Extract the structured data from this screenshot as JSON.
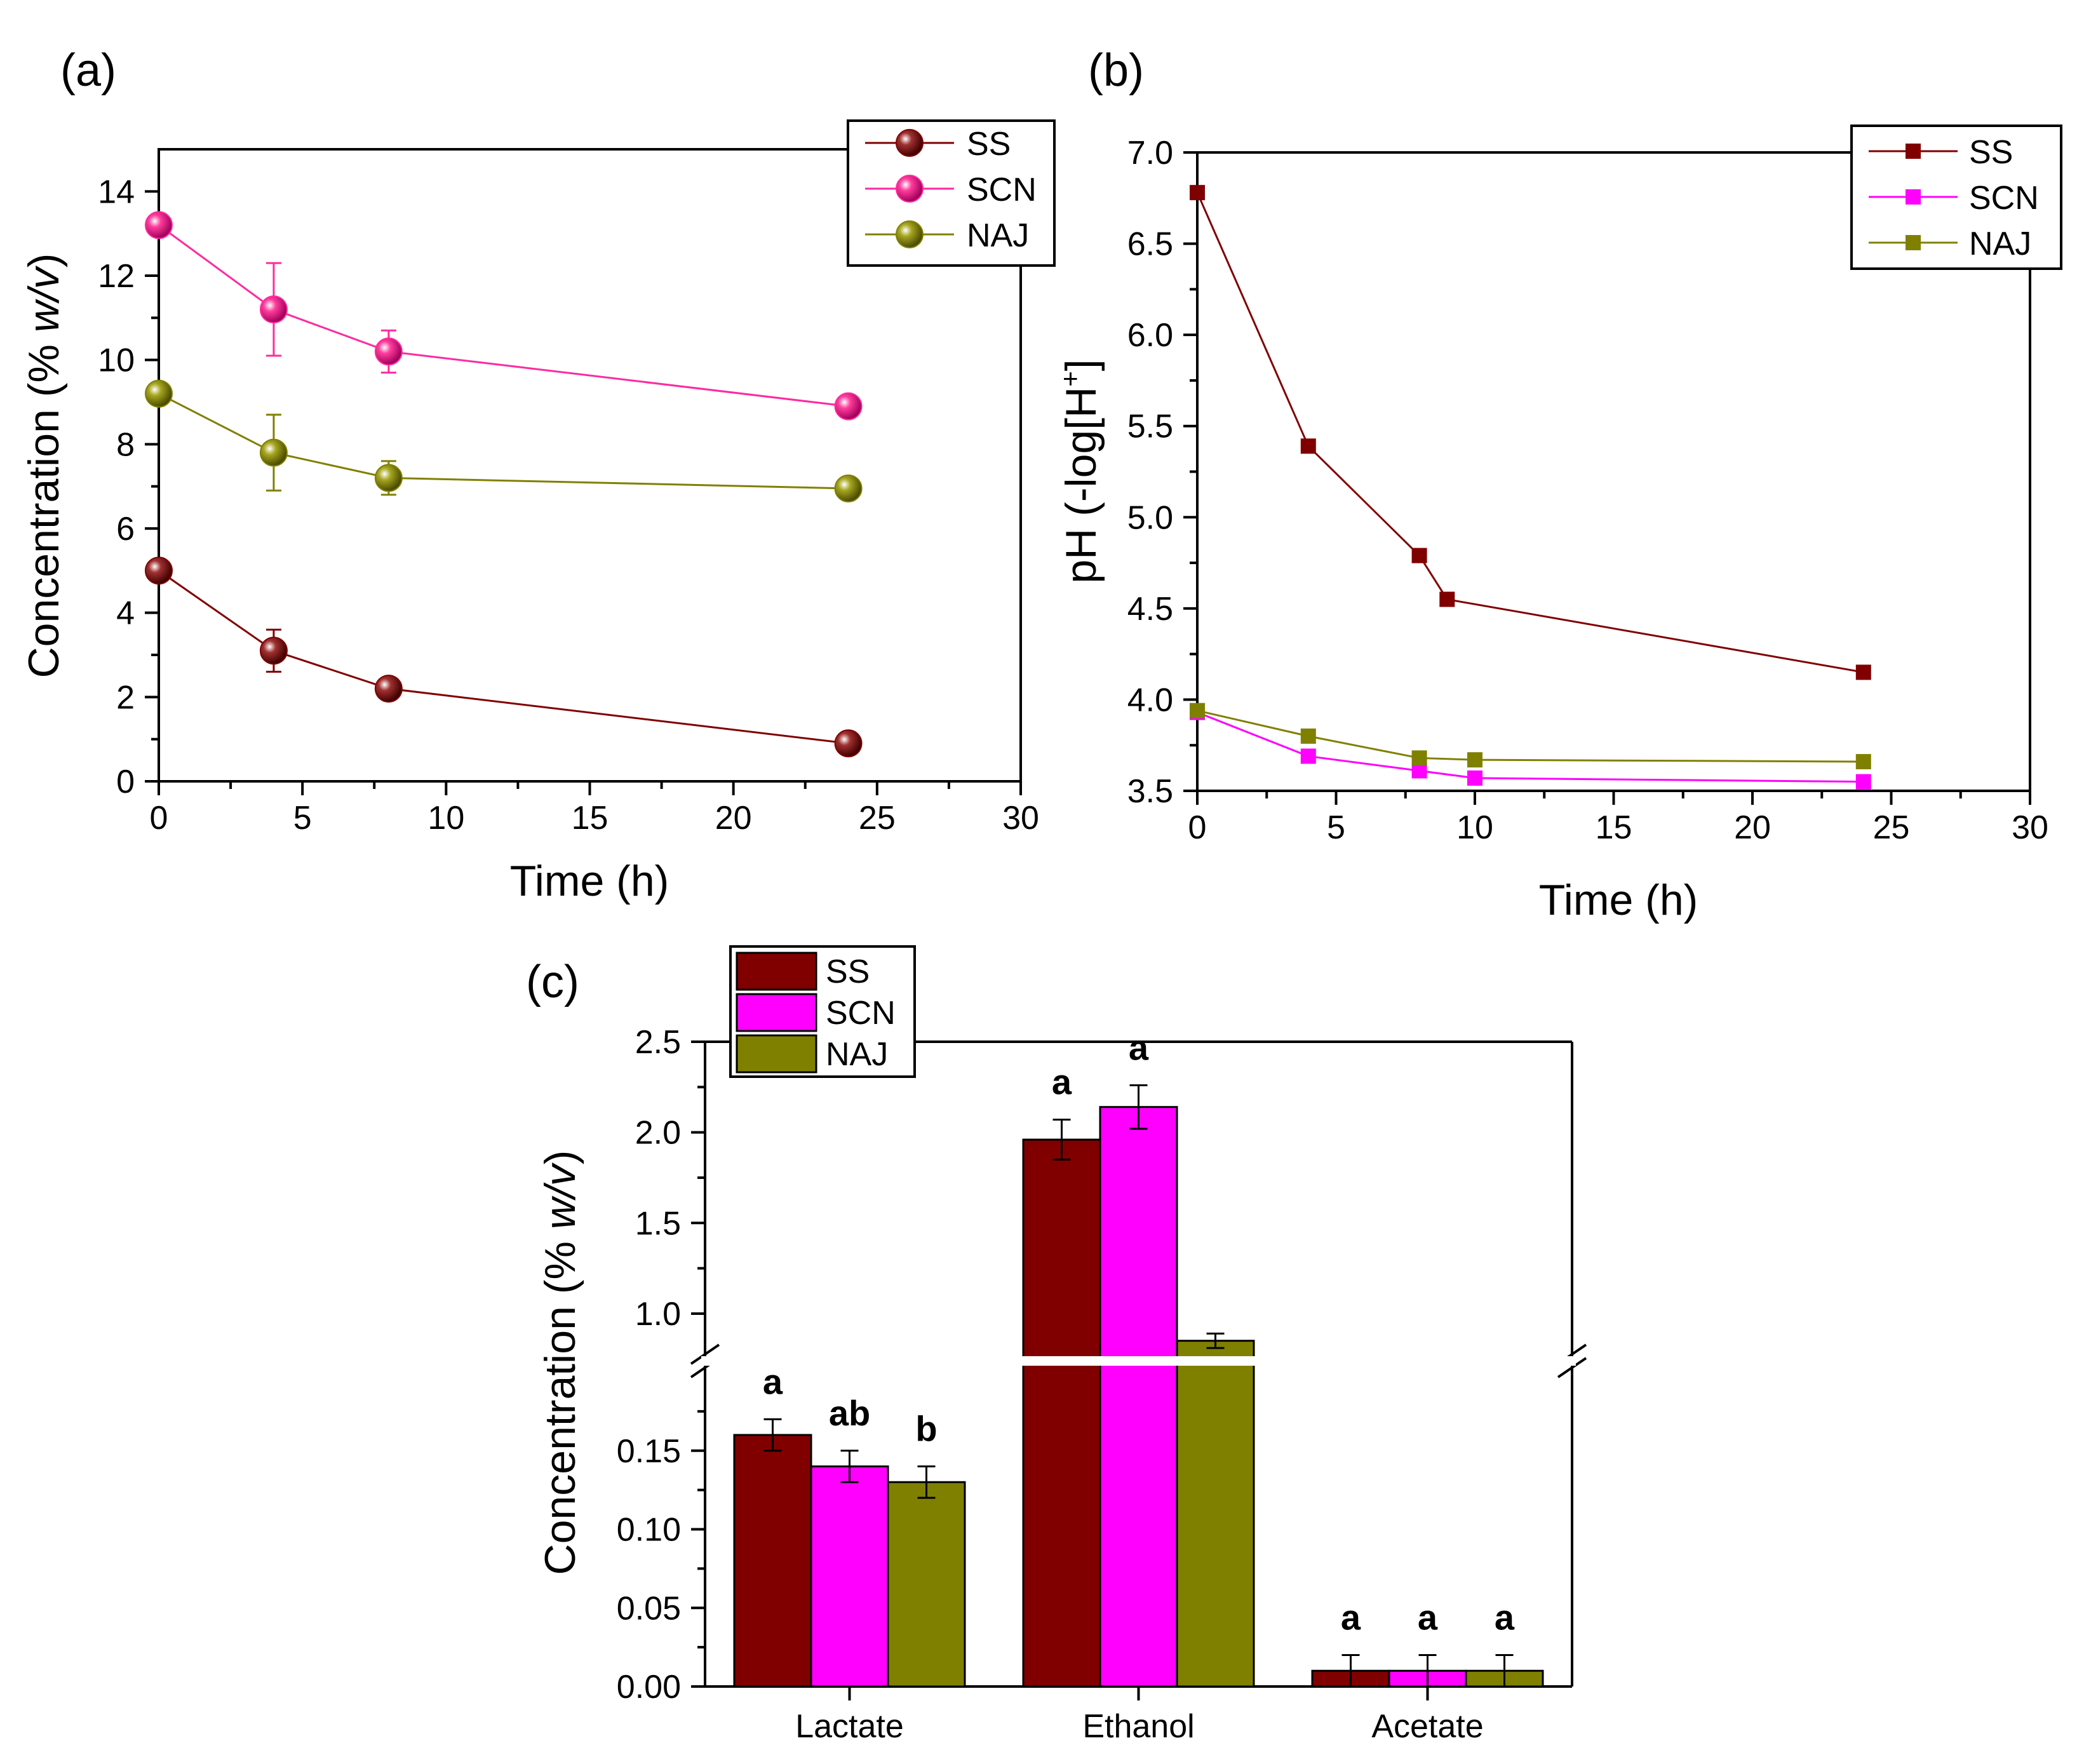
{
  "colors": {
    "SS": "#800000",
    "SCN": "#ff00ff",
    "NAJ": "#808000",
    "SCN_line": "#ff2aa0"
  },
  "chart_data": [
    {
      "panel": "(a)",
      "type": "line",
      "marker": "sphere",
      "xlabel": "Time (h)",
      "ylabel_main": "Concentration (% ",
      "ylabel_italic": "w/v",
      "ylabel_close": ")",
      "xlim": [
        0,
        30
      ],
      "ylim": [
        0,
        15
      ],
      "xticks": [
        "0",
        "5",
        "10",
        "15",
        "20",
        "25",
        "30"
      ],
      "yticks": [
        "0",
        "2",
        "4",
        "6",
        "8",
        "10",
        "12",
        "14"
      ],
      "legend_position": "top-right",
      "x": [
        0,
        4,
        8,
        24
      ],
      "series": [
        {
          "name": "SS",
          "values": [
            5.0,
            3.1,
            2.2,
            0.9
          ],
          "errors": [
            0.0,
            0.5,
            0.1,
            0.05
          ]
        },
        {
          "name": "SCN",
          "values": [
            13.2,
            11.2,
            10.2,
            8.9
          ],
          "errors": [
            0.0,
            1.1,
            0.5,
            0.1
          ]
        },
        {
          "name": "NAJ",
          "values": [
            9.2,
            7.8,
            7.2,
            6.95
          ],
          "errors": [
            0.0,
            0.9,
            0.4,
            0.1
          ]
        }
      ]
    },
    {
      "panel": "(b)",
      "type": "line",
      "marker": "square",
      "xlabel": "Time (h)",
      "ylabel": "pH (-log[H",
      "ylabel_sup": "+",
      "ylabel_close": "]",
      "xlim": [
        0,
        30
      ],
      "ylim": [
        3.5,
        7.0
      ],
      "xticks": [
        "0",
        "5",
        "10",
        "15",
        "20",
        "25",
        "30"
      ],
      "yticks": [
        "3.5",
        "4.0",
        "4.5",
        "5.0",
        "5.5",
        "6.0",
        "6.5",
        "7.0"
      ],
      "legend_position": "top-right",
      "series": [
        {
          "name": "SS",
          "x": [
            0,
            4,
            8,
            9,
            24
          ],
          "values": [
            6.78,
            5.39,
            4.79,
            4.55,
            4.15
          ]
        },
        {
          "name": "SCN",
          "x": [
            0,
            4,
            8,
            10,
            24
          ],
          "values": [
            3.93,
            3.69,
            3.61,
            3.57,
            3.55
          ]
        },
        {
          "name": "NAJ",
          "x": [
            0,
            4,
            8,
            10,
            24
          ],
          "values": [
            3.94,
            3.8,
            3.68,
            3.67,
            3.66
          ]
        }
      ]
    },
    {
      "panel": "(c)",
      "type": "bar",
      "xlabel": "",
      "ylabel_main": "Concentration (% ",
      "ylabel_italic": "w/v",
      "ylabel_close": ")",
      "axis_break": true,
      "ylim_lower": [
        0,
        0.2
      ],
      "ylim_upper": [
        0.8,
        2.5
      ],
      "yticks_lower": [
        "0.00",
        "0.05",
        "0.10",
        "0.15"
      ],
      "yticks_upper": [
        "1.0",
        "1.5",
        "2.0",
        "2.5"
      ],
      "legend_position": "top-left",
      "categories": [
        "Lactate",
        "Ethanol",
        "Acetate"
      ],
      "series": [
        {
          "name": "SS",
          "values": [
            0.16,
            1.96,
            0.01
          ],
          "errors": [
            0.01,
            0.11,
            0.01
          ],
          "letters": [
            "a",
            "a",
            "a"
          ]
        },
        {
          "name": "SCN",
          "values": [
            0.14,
            2.14,
            0.01
          ],
          "errors": [
            0.01,
            0.12,
            0.01
          ],
          "letters": [
            "ab",
            "a",
            "a"
          ]
        },
        {
          "name": "NAJ",
          "values": [
            0.13,
            0.85,
            0.01
          ],
          "errors": [
            0.01,
            0.04,
            0.01
          ],
          "letters": [
            "b",
            "",
            "a"
          ]
        }
      ]
    }
  ]
}
